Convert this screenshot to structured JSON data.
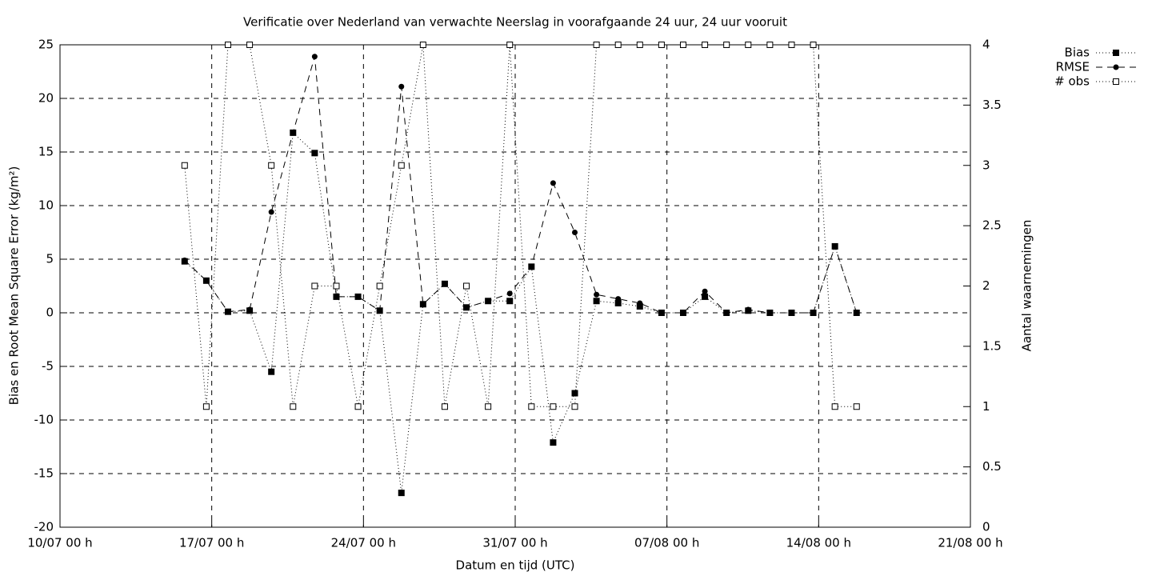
{
  "chart_data": {
    "type": "line",
    "title": "Verificatie over Nederland van verwachte Neerslag in voorafgaande 24 uur, 24 uur vooruit",
    "x_label": "Datum en tijd (UTC)",
    "y_label": "Bias en Root Mean Square Error (kg/m²)",
    "y2_label": "Aantal waarnemingen",
    "x": [
      5.75,
      6.75,
      7.75,
      8.75,
      9.75,
      10.75,
      11.75,
      12.75,
      13.75,
      14.75,
      15.75,
      16.75,
      17.75,
      18.75,
      19.75,
      20.75,
      21.75,
      22.75,
      23.75,
      24.75,
      25.75,
      26.75,
      27.75,
      28.75,
      29.75,
      30.75,
      31.75,
      32.75,
      33.75,
      34.75,
      35.75,
      36.75
    ],
    "xlim": [
      0,
      42
    ],
    "xticks": [
      {
        "value": 0,
        "label": "10/07 00 h"
      },
      {
        "value": 7,
        "label": "17/07 00 h"
      },
      {
        "value": 14,
        "label": "24/07 00 h"
      },
      {
        "value": 21,
        "label": "31/07 00 h"
      },
      {
        "value": 28,
        "label": "07/08 00 h"
      },
      {
        "value": 35,
        "label": "14/08 00 h"
      },
      {
        "value": 42,
        "label": "21/08 00 h"
      }
    ],
    "ylim": [
      -20,
      25
    ],
    "yticks": [
      -20,
      -15,
      -10,
      -5,
      0,
      5,
      10,
      15,
      20,
      25
    ],
    "y2lim": [
      0,
      4
    ],
    "y2ticks": [
      0,
      0.5,
      1,
      1.5,
      2,
      2.5,
      3,
      3.5,
      4
    ],
    "grid": true,
    "legend": "top-right",
    "series": [
      {
        "name": "Bias",
        "color": "#000000",
        "marker": "filled-square",
        "dash": "dotted",
        "values": [
          4.8,
          3.0,
          0.1,
          0.2,
          -5.5,
          16.8,
          14.9,
          1.5,
          1.5,
          0.2,
          -16.8,
          0.8,
          2.7,
          0.5,
          1.1,
          1.1,
          4.3,
          -12.1,
          -7.5,
          1.1,
          0.9,
          0.6,
          0.0,
          0.0,
          1.5,
          0.0,
          0.2,
          0.0,
          0.0,
          0.0,
          6.2,
          0.0
        ]
      },
      {
        "name": "RMSE",
        "color": "#000000",
        "marker": "circle",
        "dash": "dashed",
        "values": [
          4.9,
          3.0,
          0.1,
          0.3,
          9.4,
          16.8,
          23.9,
          1.5,
          1.5,
          0.2,
          21.1,
          0.8,
          2.7,
          0.5,
          1.1,
          1.8,
          4.3,
          12.1,
          7.5,
          1.7,
          1.3,
          0.9,
          0.0,
          0.0,
          2.0,
          0.0,
          0.3,
          0.0,
          0.0,
          0.0,
          6.2,
          0.0
        ]
      },
      {
        "name": "# obs",
        "color": "#000000",
        "marker": "open-square",
        "dash": "dotted",
        "axis": "y2",
        "values": [
          3,
          1,
          4,
          4,
          3,
          1,
          2,
          2,
          1,
          2,
          3,
          4,
          1,
          2,
          1,
          4,
          1,
          1,
          1,
          4,
          4,
          4,
          4,
          4,
          4,
          4,
          4,
          4,
          4,
          4,
          1,
          1
        ]
      }
    ]
  }
}
